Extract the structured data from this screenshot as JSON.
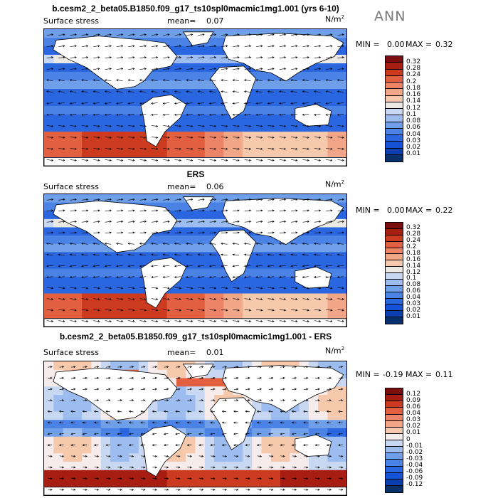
{
  "season": "ANN",
  "colors": {
    "ocean_mid": "#2f63d8",
    "land": "#ffffff",
    "coast": "#000000",
    "arrow": "#000000"
  },
  "panels": [
    {
      "title": "b.cesm2_2_beta05.B1850.f09_g17_ts10spl0macmic1mg1.001 (yrs 6-10)",
      "variable": "Surface stress",
      "mean_label": "mean=",
      "mean_value": "0.07",
      "units_base": "N/m",
      "units_exp": "2",
      "min_label": "MIN =",
      "min_value": "0.00",
      "max_label": "MAX =",
      "max_value": "0.32",
      "kind": "magnitude",
      "colorbar_ticks": [
        "0.32",
        "0.28",
        "0.24",
        "0.2",
        "0.18",
        "0.16",
        "0.14",
        "0.12",
        "0.1",
        "0.08",
        "0.06",
        "0.04",
        "0.03",
        "0.02",
        "0.01"
      ]
    },
    {
      "title": "ERS",
      "variable": "Surface stress",
      "mean_label": "mean=",
      "mean_value": "0.06",
      "units_base": "N/m",
      "units_exp": "2",
      "min_label": "MIN =",
      "min_value": "0.00",
      "max_label": "MAX =",
      "max_value": "0.22",
      "kind": "magnitude",
      "colorbar_ticks": [
        "0.32",
        "0.28",
        "0.24",
        "0.2",
        "0.18",
        "0.16",
        "0.14",
        "0.12",
        "0.1",
        "0.08",
        "0.06",
        "0.04",
        "0.03",
        "0.02",
        "0.01"
      ]
    },
    {
      "title": "b.cesm2_2_beta05.B1850.f09_g17_ts10spl0macmic1mg1.001 - ERS",
      "variable": "Surface stress",
      "mean_label": "mean=",
      "mean_value": "0.01",
      "units_base": "N/m",
      "units_exp": "2",
      "min_label": "MIN =",
      "min_value": "-0.19",
      "max_label": "MAX =",
      "max_value": "0.11",
      "kind": "difference",
      "colorbar_ticks": [
        "0.12",
        "0.09",
        "0.06",
        "0.04",
        "0.03",
        "0.02",
        "0.01",
        "0",
        "-0.01",
        "-0.02",
        "-0.03",
        "-0.04",
        "-0.06",
        "-0.09",
        "-0.12"
      ]
    }
  ],
  "chart_data": [
    {
      "type": "heatmap",
      "title": "b.cesm2_2_beta05.B1850.f09_g17_ts10spl0macmic1mg1.001 (yrs 6-10)",
      "field": "Surface stress (vector + magnitude)",
      "units": "N/m^2",
      "mean": 0.07,
      "min": 0.0,
      "max": 0.32,
      "levels": [
        0.01,
        0.02,
        0.03,
        0.04,
        0.06,
        0.08,
        0.1,
        0.12,
        0.14,
        0.16,
        0.18,
        0.2,
        0.24,
        0.28,
        0.32
      ],
      "colormap": [
        "#08306b",
        "#0b3fb0",
        "#1652d8",
        "#2a66e0",
        "#4a82e6",
        "#6f9fe9",
        "#9dbcef",
        "#c8d8f3",
        "#ece9e4",
        "#f6c9ad",
        "#f2a688",
        "#ec8468",
        "#e2603f",
        "#cc3b1f",
        "#a81d12",
        "#7a0d0d"
      ]
    },
    {
      "type": "heatmap",
      "title": "ERS",
      "field": "Surface stress (vector + magnitude)",
      "units": "N/m^2",
      "mean": 0.06,
      "min": 0.0,
      "max": 0.22,
      "levels": [
        0.01,
        0.02,
        0.03,
        0.04,
        0.06,
        0.08,
        0.1,
        0.12,
        0.14,
        0.16,
        0.18,
        0.2,
        0.24,
        0.28,
        0.32
      ],
      "colormap": [
        "#08306b",
        "#0b3fb0",
        "#1652d8",
        "#2a66e0",
        "#4a82e6",
        "#6f9fe9",
        "#9dbcef",
        "#c8d8f3",
        "#ece9e4",
        "#f6c9ad",
        "#f2a688",
        "#ec8468",
        "#e2603f",
        "#cc3b1f",
        "#a81d12",
        "#7a0d0d"
      ]
    },
    {
      "type": "heatmap",
      "title": "b.cesm2_2_beta05.B1850.f09_g17_ts10spl0macmic1mg1.001 - ERS",
      "field": "Surface stress difference (vector + magnitude)",
      "units": "N/m^2",
      "mean": 0.01,
      "min": -0.19,
      "max": 0.11,
      "levels": [
        -0.12,
        -0.09,
        -0.06,
        -0.04,
        -0.03,
        -0.02,
        -0.01,
        0,
        0.01,
        0.02,
        0.03,
        0.04,
        0.06,
        0.09,
        0.12
      ],
      "colormap": [
        "#08306b",
        "#0b3fb0",
        "#1652d8",
        "#2a66e0",
        "#4a82e6",
        "#6f9fe9",
        "#9dbcef",
        "#c8d8f3",
        "#f7ecec",
        "#f6c9ad",
        "#f2a688",
        "#ec8468",
        "#e2603f",
        "#cc3b1f",
        "#a81d12",
        "#7a0d0d"
      ]
    }
  ]
}
